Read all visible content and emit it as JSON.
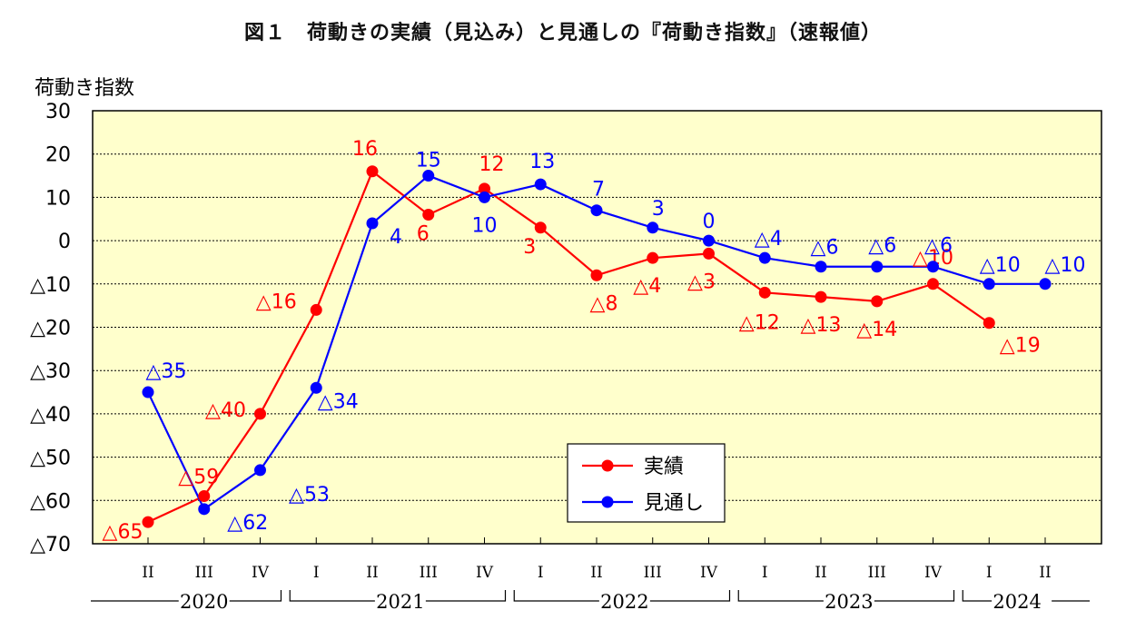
{
  "chart_data": {
    "type": "line",
    "title": "図１　荷動きの実績（見込み）と見通しの『荷動き指数』（速報値）",
    "ylabel": "荷動き指数",
    "xlabel": "",
    "ylim": [
      -70,
      30
    ],
    "yticks": [
      {
        "value": 30,
        "label": "30"
      },
      {
        "value": 20,
        "label": "20"
      },
      {
        "value": 10,
        "label": "10"
      },
      {
        "value": 0,
        "label": "0"
      },
      {
        "value": -10,
        "label": "△10"
      },
      {
        "value": -20,
        "label": "△20"
      },
      {
        "value": -30,
        "label": "△30"
      },
      {
        "value": -40,
        "label": "△40"
      },
      {
        "value": -50,
        "label": "△50"
      },
      {
        "value": -60,
        "label": "△60"
      },
      {
        "value": -70,
        "label": "△70"
      }
    ],
    "categories": [
      "II",
      "III",
      "IV",
      "I",
      "II",
      "III",
      "IV",
      "I",
      "II",
      "III",
      "IV",
      "I",
      "II",
      "III",
      "IV",
      "I",
      "II"
    ],
    "years": [
      {
        "label": "2020",
        "start": 0,
        "end": 2
      },
      {
        "label": "2021",
        "start": 3,
        "end": 6
      },
      {
        "label": "2022",
        "start": 7,
        "end": 10
      },
      {
        "label": "2023",
        "start": 11,
        "end": 14
      },
      {
        "label": "2024",
        "start": 15,
        "end": 16
      }
    ],
    "grid": true,
    "legend_position": "bottom-center",
    "series": [
      {
        "name": "実績",
        "color": "#ff0000",
        "values": [
          -65,
          -59,
          -40,
          -16,
          16,
          6,
          12,
          3,
          -8,
          -4,
          -3,
          -12,
          -13,
          -14,
          -10,
          -19,
          null
        ],
        "labels": [
          "△65",
          "△59",
          "△40",
          "△16",
          "16",
          "6",
          "12",
          "3",
          "△8",
          "△4",
          "△3",
          "△12",
          "△13",
          "△14",
          "△10",
          "△19",
          ""
        ]
      },
      {
        "name": "見通し",
        "color": "#0000ff",
        "values": [
          -35,
          -62,
          -53,
          -34,
          4,
          15,
          10,
          13,
          7,
          3,
          0,
          -4,
          -6,
          -6,
          -6,
          -10,
          -10
        ],
        "labels": [
          "△35",
          "△62",
          "△53",
          "△34",
          "4",
          "15",
          "10",
          "13",
          "7",
          "3",
          "0",
          "△4",
          "△6",
          "△6",
          "△6",
          "△10",
          "△10"
        ]
      }
    ]
  }
}
